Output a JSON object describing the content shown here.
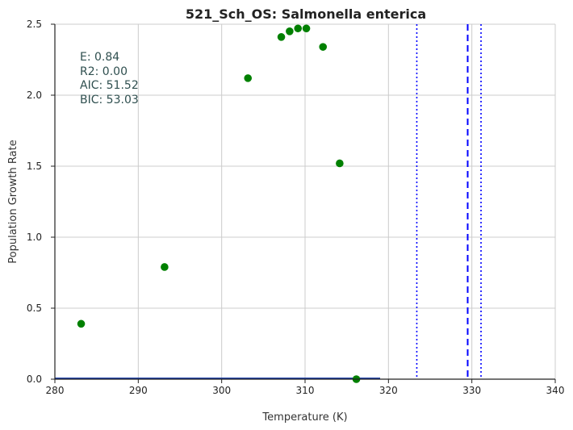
{
  "chart_data": {
    "type": "scatter",
    "title": "521_Sch_OS: Salmonella enterica",
    "xlabel": "Temperature (K)",
    "ylabel": "Population Growth Rate",
    "xlim": [
      280,
      340
    ],
    "ylim": [
      0,
      2.5
    ],
    "xticks": [
      "280",
      "290",
      "300",
      "310",
      "320",
      "330",
      "340"
    ],
    "yticks": [
      "0.0",
      "0.5",
      "1.0",
      "1.5",
      "2.0",
      "2.5"
    ],
    "grid": true,
    "points": {
      "color": "#008000",
      "x": [
        283.15,
        293.15,
        303.15,
        307.15,
        308.15,
        309.15,
        310.15,
        312.15,
        314.15,
        316.15
      ],
      "y": [
        0.39,
        0.79,
        2.12,
        2.41,
        2.45,
        2.47,
        2.47,
        2.34,
        1.52,
        0.0
      ]
    },
    "fit_line": {
      "color": "#2244aa",
      "x": [
        280,
        319
      ],
      "y": [
        0.005,
        0.005
      ]
    },
    "vlines": [
      {
        "x": 323.4,
        "style": "dotted",
        "color": "#0000ff"
      },
      {
        "x": 329.5,
        "style": "dashed",
        "color": "#0000ff"
      },
      {
        "x": 331.1,
        "style": "dotted",
        "color": "#0000ff"
      }
    ],
    "annotations": {
      "color": "#2f4f4f",
      "lines": [
        "E:  0.84",
        "R2:  0.00",
        "AIC: 51.52",
        "BIC: 53.03"
      ]
    }
  }
}
